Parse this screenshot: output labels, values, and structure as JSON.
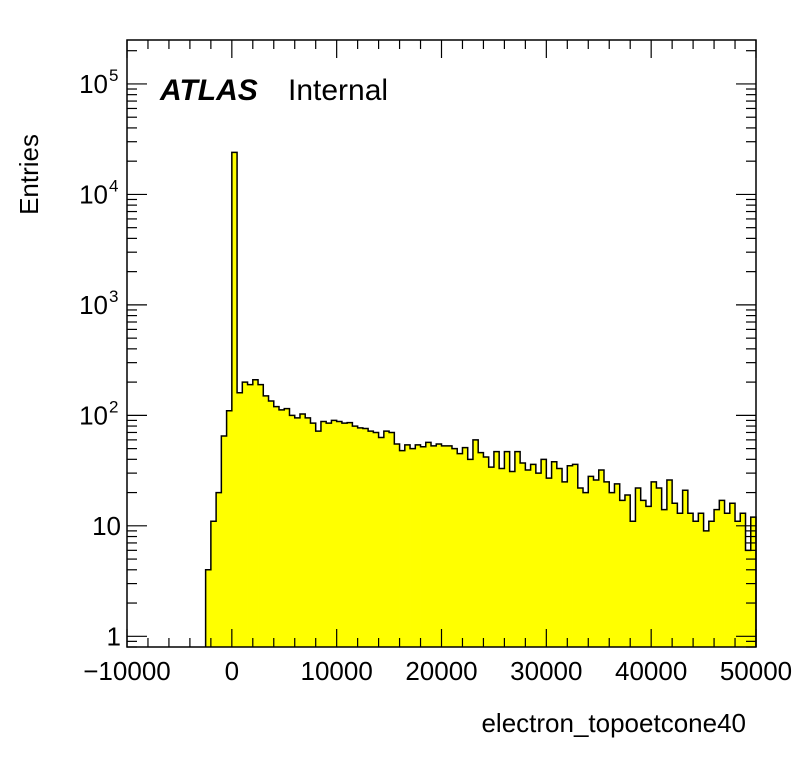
{
  "chart_data": {
    "type": "bar",
    "title": "",
    "xlabel": "electron_topoetcone40",
    "ylabel": "Entries",
    "x_log": false,
    "y_log": true,
    "xlim": [
      -10000,
      50000
    ],
    "ylim": [
      0.8,
      250000
    ],
    "bin_width": 500,
    "x_tick_labels": [
      "−10000",
      "0",
      "10000",
      "20000",
      "30000",
      "40000",
      "50000"
    ],
    "y_tick_labels": [
      {
        "label": "1",
        "value": 1,
        "sup": ""
      },
      {
        "label": "10",
        "value": 10,
        "sup": ""
      },
      {
        "label": "10",
        "value": 100,
        "sup": "2"
      },
      {
        "label": "10",
        "value": 1000,
        "sup": "3"
      },
      {
        "label": "10",
        "value": 10000,
        "sup": "4"
      },
      {
        "label": "10",
        "value": 100000,
        "sup": "5"
      }
    ],
    "annotations": {
      "experiment": "ATLAS",
      "status": "Internal"
    },
    "fill_color": "#ffff00",
    "line_color": "#000000",
    "grid": false,
    "bins": [
      [
        -2500,
        4
      ],
      [
        -2000,
        11
      ],
      [
        -1500,
        20
      ],
      [
        -1000,
        65
      ],
      [
        -500,
        110
      ],
      [
        0,
        24000
      ],
      [
        500,
        160
      ],
      [
        1000,
        200
      ],
      [
        1500,
        190
      ],
      [
        2000,
        210
      ],
      [
        2500,
        190
      ],
      [
        3000,
        150
      ],
      [
        3500,
        135
      ],
      [
        4000,
        120
      ],
      [
        4500,
        112
      ],
      [
        5000,
        115
      ],
      [
        5500,
        100
      ],
      [
        6000,
        95
      ],
      [
        6500,
        103
      ],
      [
        7000,
        95
      ],
      [
        7500,
        85
      ],
      [
        8000,
        72
      ],
      [
        8500,
        88
      ],
      [
        9000,
        85
      ],
      [
        9500,
        90
      ],
      [
        10000,
        88
      ],
      [
        10500,
        85
      ],
      [
        11000,
        86
      ],
      [
        11500,
        80
      ],
      [
        12000,
        77
      ],
      [
        12500,
        76
      ],
      [
        13000,
        72
      ],
      [
        13500,
        70
      ],
      [
        14000,
        63
      ],
      [
        14500,
        72
      ],
      [
        15000,
        70
      ],
      [
        15500,
        55
      ],
      [
        16000,
        48
      ],
      [
        16500,
        54
      ],
      [
        17000,
        50
      ],
      [
        17500,
        54
      ],
      [
        18000,
        52
      ],
      [
        18500,
        57
      ],
      [
        19000,
        53
      ],
      [
        19500,
        55
      ],
      [
        20000,
        53
      ],
      [
        20500,
        53
      ],
      [
        21000,
        50
      ],
      [
        21500,
        45
      ],
      [
        22000,
        51
      ],
      [
        22500,
        40
      ],
      [
        23000,
        60
      ],
      [
        23500,
        46
      ],
      [
        24000,
        42
      ],
      [
        24500,
        34
      ],
      [
        25000,
        47
      ],
      [
        25500,
        33
      ],
      [
        26000,
        47
      ],
      [
        26500,
        31
      ],
      [
        27000,
        47
      ],
      [
        27500,
        37
      ],
      [
        28000,
        32
      ],
      [
        28500,
        36
      ],
      [
        29000,
        30
      ],
      [
        29500,
        40
      ],
      [
        30000,
        27
      ],
      [
        30500,
        38
      ],
      [
        31000,
        33
      ],
      [
        31500,
        25
      ],
      [
        32000,
        35
      ],
      [
        32500,
        36
      ],
      [
        33000,
        22
      ],
      [
        33500,
        20
      ],
      [
        34000,
        28
      ],
      [
        34500,
        26
      ],
      [
        35000,
        32
      ],
      [
        35500,
        25
      ],
      [
        36000,
        20
      ],
      [
        36500,
        24
      ],
      [
        37000,
        17
      ],
      [
        37500,
        19
      ],
      [
        38000,
        11
      ],
      [
        38500,
        22
      ],
      [
        39000,
        17
      ],
      [
        39500,
        15
      ],
      [
        40000,
        25
      ],
      [
        40500,
        22
      ],
      [
        41000,
        14
      ],
      [
        41500,
        26
      ],
      [
        42000,
        16
      ],
      [
        42500,
        13
      ],
      [
        43000,
        21
      ],
      [
        43500,
        13
      ],
      [
        44000,
        11
      ],
      [
        44500,
        13
      ],
      [
        45000,
        9
      ],
      [
        45500,
        11
      ],
      [
        46000,
        14
      ],
      [
        46500,
        17
      ],
      [
        47000,
        13
      ],
      [
        47500,
        16
      ],
      [
        48000,
        11
      ],
      [
        48500,
        13
      ],
      [
        49000,
        6
      ],
      [
        49500,
        12
      ]
    ]
  }
}
